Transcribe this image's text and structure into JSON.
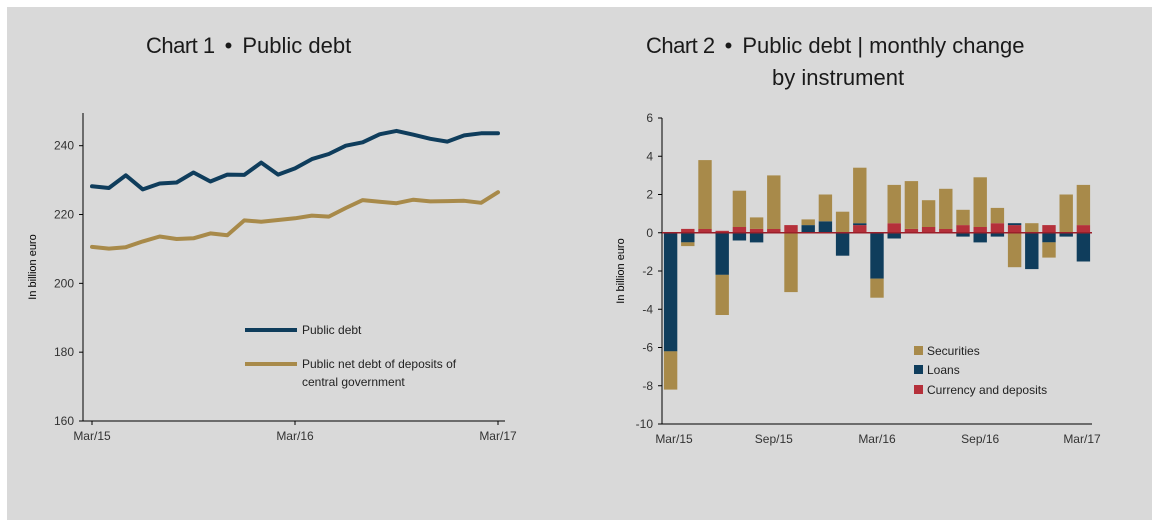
{
  "chart1": {
    "title_num": "Chart 1",
    "title_sub": "Public debt",
    "title_bullet": "•"
  },
  "chart2": {
    "title_num": "Chart 2",
    "title_sub_line1": "Public debt | monthly change",
    "title_sub_line2": "by instrument",
    "title_bullet": "•"
  },
  "chart_data": [
    {
      "type": "line",
      "title": "Chart 1 • Public debt",
      "ylabel": "In billion euro",
      "xlabel": "",
      "ylim": [
        160,
        250
      ],
      "yticks": [
        160,
        180,
        200,
        220,
        240
      ],
      "xticks": [
        "Mar/15",
        "Mar/16",
        "Mar/17"
      ],
      "x": [
        "Mar/15",
        "Apr/15",
        "May/15",
        "Jun/15",
        "Jul/15",
        "Aug/15",
        "Sep/15",
        "Oct/15",
        "Nov/15",
        "Dec/15",
        "Jan/16",
        "Feb/16",
        "Mar/16",
        "Apr/16",
        "May/16",
        "Jun/16",
        "Jul/16",
        "Aug/16",
        "Sep/16",
        "Oct/16",
        "Nov/16",
        "Dec/16",
        "Jan/17",
        "Feb/17",
        "Mar/17"
      ],
      "series": [
        {
          "name": "Public debt",
          "color": "#0f3d5c",
          "values": [
            228.2,
            227.7,
            231.4,
            227.3,
            229.0,
            229.3,
            232.2,
            229.6,
            231.6,
            231.5,
            235.1,
            231.6,
            233.4,
            236.1,
            237.6,
            240.0,
            241.0,
            243.3,
            244.3,
            243.2,
            242.0,
            241.2,
            243.0,
            243.6,
            243.6
          ]
        },
        {
          "name": "Public net debt of deposits of central government",
          "name_line1": "Public net debt of deposits of",
          "name_line2": "central government",
          "color": "#a88a4a",
          "values": [
            210.6,
            210.1,
            210.5,
            212.2,
            213.6,
            212.9,
            213.1,
            214.5,
            214.0,
            218.3,
            217.9,
            218.4,
            218.9,
            219.7,
            219.4,
            221.9,
            224.2,
            223.7,
            223.3,
            224.3,
            223.8,
            223.9,
            224.0,
            223.4,
            226.5
          ]
        }
      ],
      "legend": "bottom-right",
      "grid": false
    },
    {
      "type": "bar",
      "stacked": true,
      "title": "Chart 2 • Public debt | monthly change by instrument",
      "ylabel": "In billion euro",
      "xlabel": "",
      "ylim": [
        -10,
        6
      ],
      "yticks": [
        -10,
        -8,
        -6,
        -4,
        -2,
        0,
        2,
        4,
        6
      ],
      "xticks": [
        "Mar/15",
        "Sep/15",
        "Mar/16",
        "Sep/16",
        "Mar/17"
      ],
      "categories": [
        "Mar/15",
        "Apr/15",
        "May/15",
        "Jun/15",
        "Jul/15",
        "Aug/15",
        "Sep/15",
        "Oct/15",
        "Nov/15",
        "Dec/15",
        "Jan/16",
        "Feb/16",
        "Mar/16",
        "Apr/16",
        "May/16",
        "Jun/16",
        "Jul/16",
        "Aug/16",
        "Sep/16",
        "Oct/16",
        "Nov/16",
        "Dec/16",
        "Jan/17",
        "Feb/17",
        "Mar/17"
      ],
      "series": [
        {
          "name": "Securities",
          "color": "#a88a4a",
          "values": [
            -2.0,
            -0.2,
            3.6,
            -2.1,
            1.9,
            0.6,
            2.8,
            -3.1,
            0.3,
            1.4,
            1.1,
            2.9,
            -1.0,
            2.0,
            2.5,
            1.4,
            2.1,
            0.8,
            2.6,
            0.8,
            -1.8,
            0.5,
            -0.8,
            2.0,
            2.1
          ]
        },
        {
          "name": "Loans",
          "color": "#0f3d5c",
          "values": [
            -6.2,
            -0.5,
            0.0,
            -2.2,
            -0.4,
            -0.5,
            0.0,
            0.0,
            0.4,
            0.6,
            -1.2,
            0.1,
            -2.4,
            -0.3,
            0.0,
            0.0,
            0.0,
            -0.2,
            -0.5,
            -0.2,
            0.1,
            -1.9,
            -0.5,
            -0.2,
            -1.5
          ]
        },
        {
          "name": "Currency and deposits",
          "color": "#b5303a",
          "values": [
            0.0,
            0.2,
            0.2,
            0.1,
            0.3,
            0.2,
            0.2,
            0.4,
            0.0,
            0.0,
            0.0,
            0.4,
            0.0,
            0.5,
            0.2,
            0.3,
            0.2,
            0.4,
            0.3,
            0.5,
            0.4,
            0.0,
            0.4,
            0.0,
            0.4
          ]
        }
      ],
      "legend": "bottom-right",
      "grid": false
    }
  ]
}
